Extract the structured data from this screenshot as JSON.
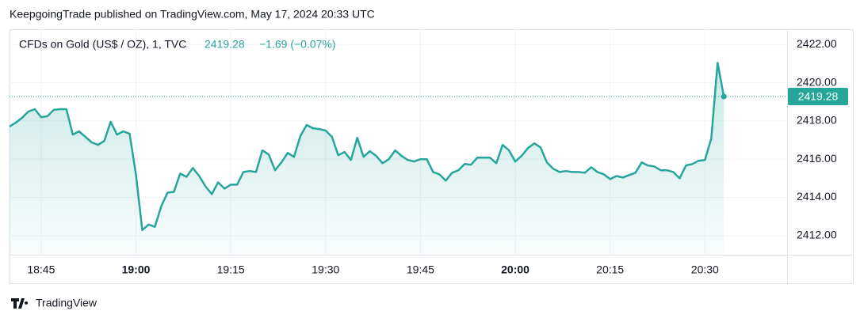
{
  "header": "KeepgoingTrade published on TradingView.com, May 17, 2024 20:33 UTC",
  "footer": "TradingView",
  "chart_data": {
    "type": "area",
    "last_price": 2419.28,
    "change": "−1.69 (−0.07%)",
    "x": [
      "18:40",
      "18:41",
      "18:42",
      "18:43",
      "18:44",
      "18:45",
      "18:46",
      "18:47",
      "18:48",
      "18:49",
      "18:50",
      "18:51",
      "18:52",
      "18:53",
      "18:54",
      "18:55",
      "18:56",
      "18:57",
      "18:58",
      "18:59",
      "19:00",
      "19:01",
      "19:02",
      "19:03",
      "19:04",
      "19:05",
      "19:06",
      "19:07",
      "19:08",
      "19:09",
      "19:10",
      "19:11",
      "19:12",
      "19:13",
      "19:14",
      "19:15",
      "19:16",
      "19:17",
      "19:18",
      "19:19",
      "19:20",
      "19:21",
      "19:22",
      "19:23",
      "19:24",
      "19:25",
      "19:26",
      "19:27",
      "19:28",
      "19:29",
      "19:30",
      "19:31",
      "19:32",
      "19:33",
      "19:34",
      "19:35",
      "19:36",
      "19:37",
      "19:38",
      "19:39",
      "19:40",
      "19:41",
      "19:42",
      "19:43",
      "19:44",
      "19:45",
      "19:46",
      "19:47",
      "19:48",
      "19:49",
      "19:50",
      "19:51",
      "19:52",
      "19:53",
      "19:54",
      "19:55",
      "19:56",
      "19:57",
      "19:58",
      "19:59",
      "20:00",
      "20:01",
      "20:02",
      "20:03",
      "20:04",
      "20:05",
      "20:06",
      "20:07",
      "20:08",
      "20:09",
      "20:10",
      "20:11",
      "20:12",
      "20:13",
      "20:14",
      "20:15",
      "20:16",
      "20:17",
      "20:18",
      "20:19",
      "20:20",
      "20:21",
      "20:22",
      "20:23",
      "20:24",
      "20:25",
      "20:26",
      "20:27",
      "20:28",
      "20:29",
      "20:30",
      "20:31",
      "20:32",
      "20:33"
    ],
    "series": [
      {
        "name": "CFDs on Gold (US$ / OZ), 1, TVC",
        "color": "#26a69a",
        "values": [
          2417.71,
          2417.92,
          2418.17,
          2418.5,
          2418.62,
          2418.2,
          2418.25,
          2418.58,
          2418.62,
          2418.62,
          2417.29,
          2417.46,
          2417.17,
          2416.88,
          2416.75,
          2416.96,
          2417.96,
          2417.29,
          2417.46,
          2417.33,
          2415.2,
          2412.29,
          2412.58,
          2412.46,
          2413.54,
          2414.25,
          2414.29,
          2415.25,
          2415.08,
          2415.54,
          2415.12,
          2414.58,
          2414.17,
          2414.79,
          2414.46,
          2414.67,
          2414.67,
          2415.33,
          2415.38,
          2415.33,
          2416.46,
          2416.25,
          2415.42,
          2415.83,
          2416.33,
          2416.12,
          2417.21,
          2417.79,
          2417.62,
          2417.58,
          2417.5,
          2417.17,
          2416.21,
          2416.38,
          2415.96,
          2417.12,
          2416.12,
          2416.42,
          2416.17,
          2415.79,
          2416.0,
          2416.46,
          2416.17,
          2415.96,
          2415.88,
          2416.0,
          2416.0,
          2415.33,
          2415.21,
          2414.88,
          2415.29,
          2415.42,
          2415.75,
          2415.71,
          2416.08,
          2416.08,
          2416.08,
          2415.79,
          2416.75,
          2416.46,
          2415.88,
          2416.17,
          2416.58,
          2416.83,
          2416.62,
          2415.83,
          2415.5,
          2415.33,
          2415.38,
          2415.33,
          2415.33,
          2415.29,
          2415.58,
          2415.33,
          2415.21,
          2414.96,
          2415.12,
          2415.04,
          2415.17,
          2415.29,
          2415.83,
          2415.67,
          2415.62,
          2415.42,
          2415.42,
          2415.33,
          2415.0,
          2415.67,
          2415.75,
          2415.92,
          2415.96,
          2417.08,
          2421.04,
          2419.28
        ]
      }
    ],
    "xlim": [
      "18:40",
      "20:43"
    ],
    "xticks": [
      "18:45",
      "19:00",
      "19:15",
      "19:30",
      "19:45",
      "20:00",
      "20:15",
      "20:30"
    ],
    "ylim": [
      2411,
      2422.8
    ],
    "yticks": [
      {
        "value": 2412,
        "label": "2412.00"
      },
      {
        "value": 2414,
        "label": "2414.00"
      },
      {
        "value": 2416,
        "label": "2416.00"
      },
      {
        "value": 2418,
        "label": "2418.00"
      },
      {
        "value": 2420,
        "label": "2420.00"
      },
      {
        "value": 2422,
        "label": "2422.00"
      }
    ],
    "grid": true
  }
}
